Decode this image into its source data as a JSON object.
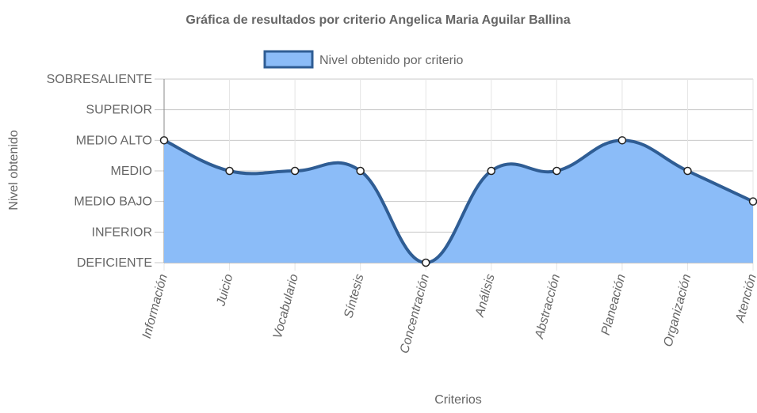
{
  "chart_data": {
    "type": "area",
    "title": "Gráfica de resultados por criterio Angelica Maria Aguilar Ballina",
    "xlabel": "Criterios",
    "ylabel": "Nivel obtenido",
    "y_levels": [
      "DEFICIENTE",
      "INFERIOR",
      "MEDIO BAJO",
      "MEDIO",
      "MEDIO ALTO",
      "SUPERIOR",
      "SOBRESALIENTE"
    ],
    "ylim": [
      0,
      6
    ],
    "categories": [
      "Información",
      "Juicio",
      "Vocabulario",
      "Síntesis",
      "Concentración",
      "Análisis",
      "Abstracción",
      "Planeación",
      "Organización",
      "Atención"
    ],
    "series": [
      {
        "name": "Nivel obtenido por criterio",
        "values": [
          4,
          3,
          3,
          3,
          0,
          3,
          3,
          4,
          3,
          2
        ],
        "line_color": "#2f5d94",
        "fill_color": "#8bbcf8"
      }
    ],
    "grid": true,
    "legend_position": "top"
  }
}
